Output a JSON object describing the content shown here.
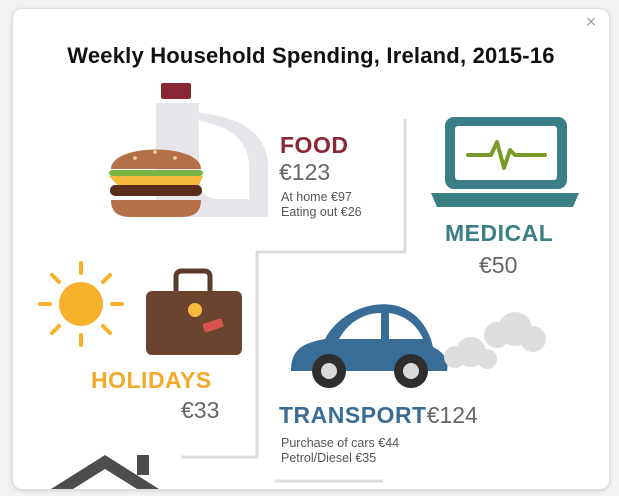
{
  "dialog": {
    "title": "Weekly Household Spending, Ireland, 2015-16",
    "close_glyph": "×"
  },
  "categories": {
    "food": {
      "label": "FOOD",
      "amount": "€123",
      "details": [
        "At home €97",
        "Eating out €26"
      ],
      "color": "#8b2635",
      "icons": [
        "burger-icon",
        "milk-jug-icon"
      ]
    },
    "medical": {
      "label": "MEDICAL",
      "amount": "€50",
      "color": "#3a7f86",
      "icons": [
        "laptop-heartbeat-icon"
      ]
    },
    "holidays": {
      "label": "HOLIDAYS",
      "amount": "€33",
      "color": "#f2aa2b",
      "icons": [
        "sun-icon",
        "suitcase-icon"
      ]
    },
    "transport": {
      "label": "TRANSPORT",
      "amount": "€124",
      "details": [
        "Purchase of cars €44",
        "Petrol/Diesel €35"
      ],
      "color": "#3a6d96",
      "icons": [
        "car-icon",
        "exhaust-smoke-icon"
      ]
    }
  },
  "colors": {
    "background": "#ffffff",
    "divider": "#dcdcdc",
    "house": "#4d4d4d"
  }
}
